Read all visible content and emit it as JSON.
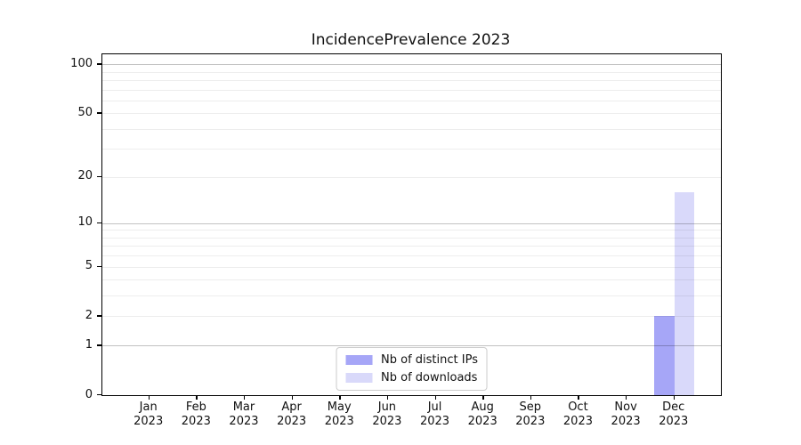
{
  "chart_data": {
    "type": "bar",
    "title": "IncidencePrevalence 2023",
    "xlabel": "",
    "ylabel": "",
    "categories": [
      "Jan",
      "Feb",
      "Mar",
      "Apr",
      "May",
      "Jun",
      "Jul",
      "Aug",
      "Sep",
      "Oct",
      "Nov",
      "Dec"
    ],
    "category_year": "2023",
    "series": [
      {
        "name": "Nb of distinct IPs",
        "color": "#a6a6f7",
        "values": [
          0,
          0,
          0,
          0,
          0,
          0,
          0,
          0,
          0,
          0,
          0,
          2
        ]
      },
      {
        "name": "Nb of downloads",
        "color": "#d9d9fa",
        "values": [
          0,
          0,
          0,
          0,
          0,
          0,
          0,
          0,
          0,
          0,
          0,
          16
        ]
      }
    ],
    "yscale": "log1p",
    "ylim": [
      0,
      115
    ],
    "y_tick_labels": [
      0,
      1,
      2,
      5,
      10,
      20,
      50,
      100
    ],
    "y_major_gridlines": [
      1,
      10,
      100
    ],
    "y_minor_gridlines": [
      2,
      3,
      4,
      5,
      6,
      7,
      8,
      9,
      20,
      30,
      40,
      50,
      60,
      70,
      80,
      90
    ],
    "grid": true,
    "legend_position": "lower center"
  }
}
